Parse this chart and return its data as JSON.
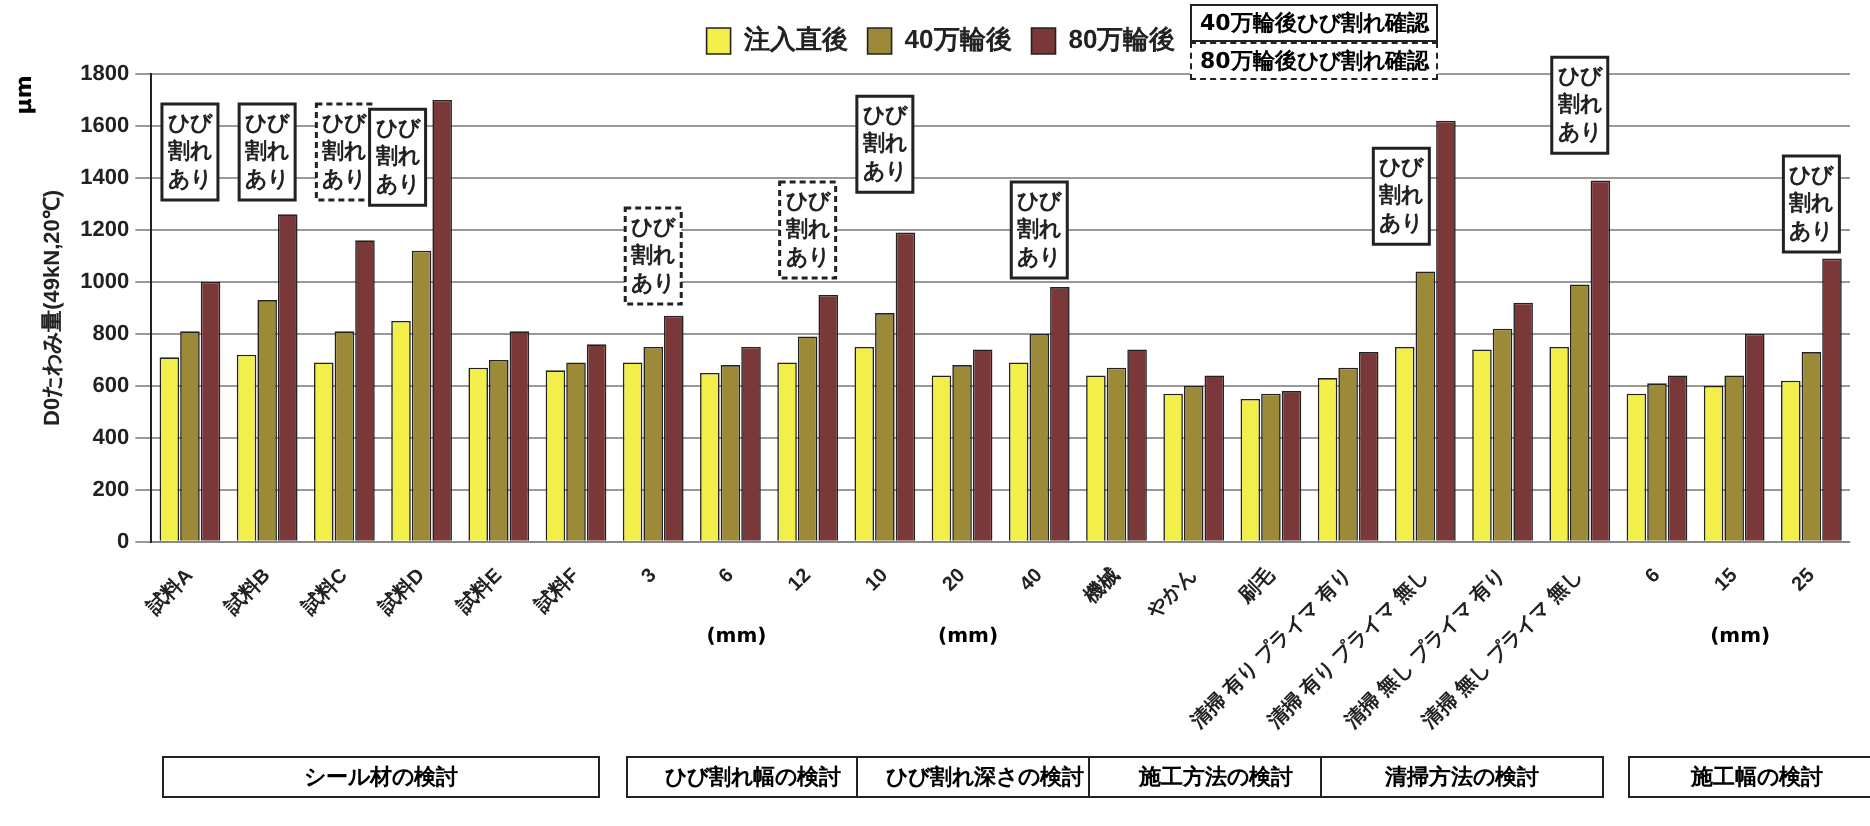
{
  "chart_data": {
    "type": "bar",
    "ylabel": "D0たわみ量(49kN,20℃)",
    "categories": [
      "試料A",
      "試料B",
      "試料C",
      "試料D",
      "試料E",
      "試料F",
      "3",
      "6",
      "12",
      "10",
      "20",
      "40",
      "機械",
      "やかん",
      "刷毛",
      "清掃 有り プライマ 有り",
      "清掃 有り プライマ 無し",
      "清掃 無し プライマ 有り",
      "清掃 無し プライマ 無し",
      "6",
      "15",
      "25"
    ],
    "series": [
      {
        "name": "注入直後",
        "color": "#f2ee4a",
        "values": [
          710,
          720,
          690,
          850,
          670,
          660,
          690,
          650,
          690,
          750,
          640,
          690,
          640,
          570,
          550,
          630,
          750,
          740,
          750,
          570,
          600,
          620
        ]
      },
      {
        "name": "40万輪後",
        "color": "#9c8a38",
        "values": [
          810,
          930,
          810,
          1120,
          700,
          690,
          750,
          680,
          790,
          880,
          680,
          800,
          670,
          600,
          570,
          670,
          1040,
          820,
          990,
          610,
          640,
          730
        ]
      },
      {
        "name": "80万輪後",
        "color": "#7a3838",
        "values": [
          1000,
          1260,
          1160,
          1700,
          810,
          760,
          870,
          750,
          950,
          1190,
          740,
          980,
          740,
          640,
          580,
          730,
          1620,
          920,
          1390,
          640,
          800,
          1090
        ]
      }
    ],
    "ylim": [
      0,
      1800
    ],
    "yticks": [
      0,
      200,
      400,
      600,
      800,
      1000,
      1200,
      1400,
      1600,
      1800
    ],
    "grid": "y",
    "legend": "top",
    "annotations": [
      "40万輪後ひび割れ確認",
      "80万輪後ひび割れ確認",
      "μm",
      "シール材の検討",
      "ひび割れ幅の検討",
      "ひび割れ深さの検討",
      "施工方法の検討",
      "清掃方法の検討",
      "施工幅の検討",
      "(mm)",
      "(mm)",
      "(mm)",
      "ひび割れあり",
      "ひび割れあり",
      "ひび割れあり",
      "ひび割れあり",
      "ひび割れあり",
      "ひび割れあり",
      "ひび割れあり",
      "ひび割れあり",
      "ひび割れあり",
      "ひび割れあり",
      "ひび割れあり"
    ]
  }
}
